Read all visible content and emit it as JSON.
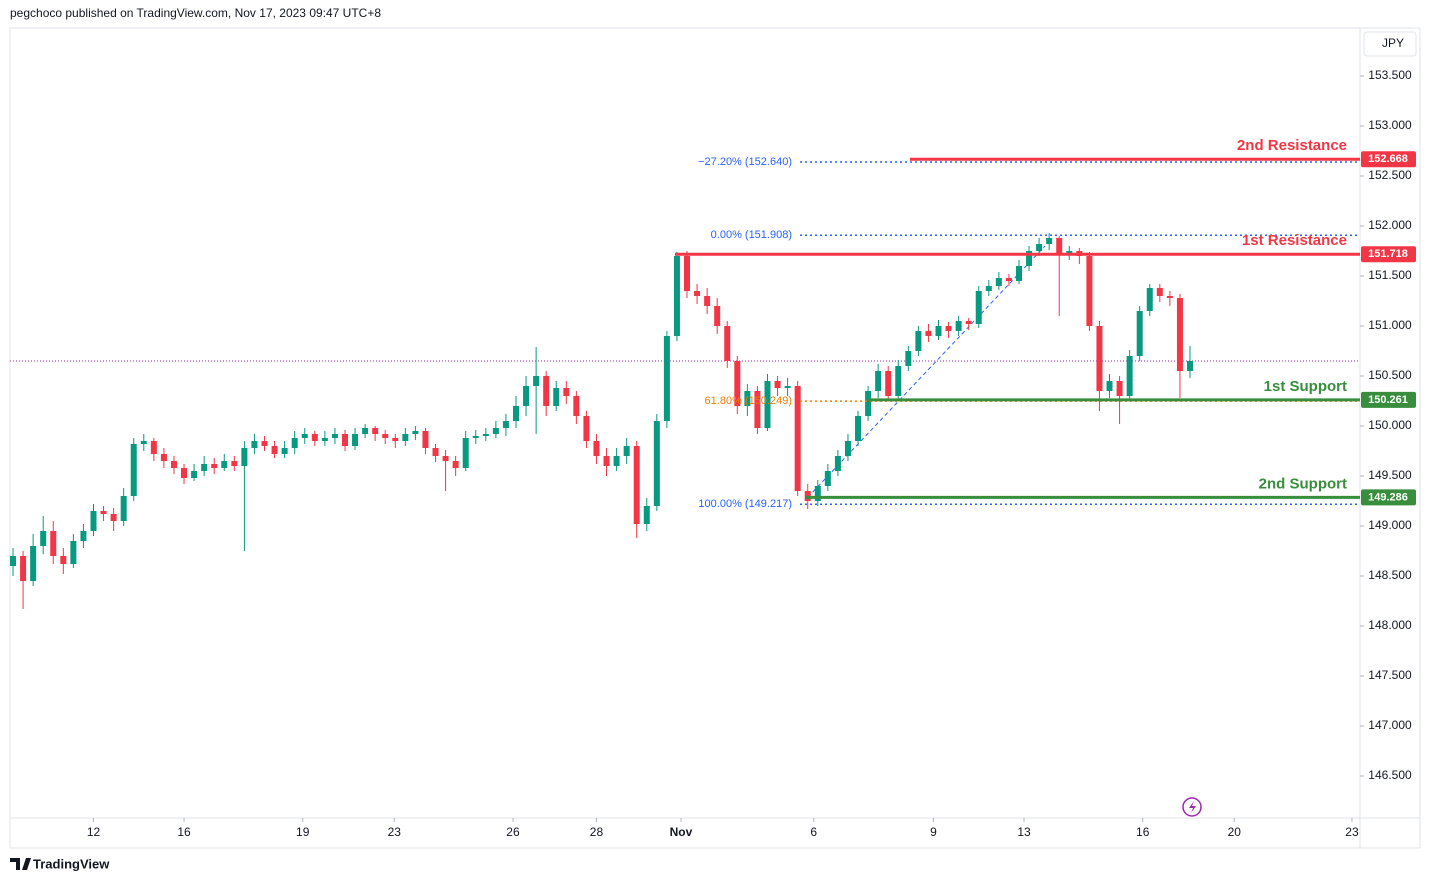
{
  "header": "pegchoco published on TradingView.com, Nov 17, 2023 09:47 UTC+8",
  "brand": "TradingView",
  "chart_data": {
    "type": "candlestick",
    "currency": "JPY",
    "up_color": "#089981",
    "down_color": "#f23645",
    "xlim": [
      -0.3,
      133.9
    ],
    "ylim": [
      146.08,
      153.98
    ],
    "xticks": [
      {
        "value": 8.0,
        "label": "12"
      },
      {
        "value": 17.0,
        "label": "16"
      },
      {
        "value": 28.8,
        "label": "19"
      },
      {
        "value": 37.9,
        "label": "23"
      },
      {
        "value": 49.7,
        "label": "26"
      },
      {
        "value": 58.0,
        "label": "28"
      },
      {
        "value": 66.4,
        "label": "Nov"
      },
      {
        "value": 79.6,
        "label": "6"
      },
      {
        "value": 91.5,
        "label": "9"
      },
      {
        "value": 100.5,
        "label": "13"
      },
      {
        "value": 112.3,
        "label": "16"
      },
      {
        "value": 121.4,
        "label": "20"
      },
      {
        "value": 133.1,
        "label": "23"
      }
    ],
    "yticks": [
      {
        "value": 146.5,
        "label": "146.500"
      },
      {
        "value": 147,
        "label": "147.000"
      },
      {
        "value": 147.5,
        "label": "147.500"
      },
      {
        "value": 148,
        "label": "148.000"
      },
      {
        "value": 148.5,
        "label": "148.500"
      },
      {
        "value": 149,
        "label": "149.000"
      },
      {
        "value": 149.5,
        "label": "149.500"
      },
      {
        "value": 150,
        "label": "150.000"
      },
      {
        "value": 150.5,
        "label": "150.500"
      },
      {
        "value": 151,
        "label": "151.000"
      },
      {
        "value": 151.5,
        "label": "151.500"
      },
      {
        "value": 152,
        "label": "152.000"
      },
      {
        "value": 152.5,
        "label": "152.500"
      },
      {
        "value": 153,
        "label": "153.000"
      },
      {
        "value": 153.5,
        "label": "153.500"
      }
    ],
    "levels": [
      {
        "name": "2nd Resistance",
        "value": 152.668,
        "color": "#f23645"
      },
      {
        "name": "1st Resistance",
        "value": 151.718,
        "color": "#f23645"
      },
      {
        "name": "1st Support",
        "value": 150.261,
        "color": "#388e3c"
      },
      {
        "name": "2nd Support",
        "value": 149.286,
        "color": "#388e3c"
      }
    ],
    "fib_levels": [
      {
        "label": "−27.20% (152.640)",
        "value": 152.64,
        "color": "#2962ff"
      },
      {
        "label": "0.00% (151.908)",
        "value": 151.908,
        "color": "#2962ff"
      },
      {
        "label": "61.80% (150.249)",
        "value": 150.249,
        "color": "#f57c00"
      },
      {
        "label": "100.00% (149.217)",
        "value": 149.217,
        "color": "#2962ff"
      }
    ],
    "ohlc": [
      [
        148.6,
        148.78,
        148.5,
        148.7
      ],
      [
        148.7,
        148.75,
        148.17,
        148.45
      ],
      [
        148.45,
        148.92,
        148.4,
        148.8
      ],
      [
        148.8,
        149.1,
        148.72,
        148.95
      ],
      [
        148.95,
        149.05,
        148.62,
        148.7
      ],
      [
        148.7,
        148.78,
        148.52,
        148.62
      ],
      [
        148.62,
        148.92,
        148.58,
        148.85
      ],
      [
        148.85,
        149.02,
        148.78,
        148.95
      ],
      [
        148.95,
        149.22,
        148.9,
        149.15
      ],
      [
        149.15,
        149.2,
        149.05,
        149.12
      ],
      [
        149.12,
        149.18,
        148.95,
        149.05
      ],
      [
        149.05,
        149.38,
        149.0,
        149.3
      ],
      [
        149.3,
        149.88,
        149.25,
        149.82
      ],
      [
        149.82,
        149.92,
        149.75,
        149.85
      ],
      [
        149.85,
        149.88,
        149.65,
        149.72
      ],
      [
        149.72,
        149.78,
        149.58,
        149.65
      ],
      [
        149.65,
        149.7,
        149.52,
        149.58
      ],
      [
        149.58,
        149.62,
        149.42,
        149.48
      ],
      [
        149.48,
        149.62,
        149.45,
        149.55
      ],
      [
        149.55,
        149.7,
        149.5,
        149.62
      ],
      [
        149.62,
        149.68,
        149.52,
        149.58
      ],
      [
        149.58,
        149.72,
        149.55,
        149.65
      ],
      [
        149.65,
        149.7,
        149.55,
        149.6
      ],
      [
        149.6,
        149.85,
        148.75,
        149.78
      ],
      [
        149.78,
        149.92,
        149.72,
        149.85
      ],
      [
        149.85,
        149.9,
        149.75,
        149.8
      ],
      [
        149.8,
        149.85,
        149.68,
        149.72
      ],
      [
        149.72,
        149.85,
        149.68,
        149.78
      ],
      [
        149.78,
        149.95,
        149.72,
        149.88
      ],
      [
        149.88,
        149.98,
        149.82,
        149.92
      ],
      [
        149.92,
        149.95,
        149.8,
        149.85
      ],
      [
        149.85,
        149.95,
        149.8,
        149.88
      ],
      [
        149.88,
        149.98,
        149.82,
        149.92
      ],
      [
        149.92,
        149.96,
        149.75,
        149.8
      ],
      [
        149.8,
        149.98,
        149.76,
        149.92
      ],
      [
        149.92,
        150.02,
        149.88,
        149.98
      ],
      [
        149.98,
        150.0,
        149.85,
        149.92
      ],
      [
        149.92,
        149.96,
        149.82,
        149.88
      ],
      [
        149.88,
        149.92,
        149.78,
        149.85
      ],
      [
        149.85,
        149.98,
        149.8,
        149.92
      ],
      [
        149.92,
        150.0,
        149.86,
        149.95
      ],
      [
        149.95,
        149.98,
        149.72,
        149.78
      ],
      [
        149.78,
        149.82,
        149.64,
        149.7
      ],
      [
        149.7,
        149.76,
        149.35,
        149.65
      ],
      [
        149.65,
        149.7,
        149.5,
        149.58
      ],
      [
        149.58,
        149.95,
        149.55,
        149.88
      ],
      [
        149.88,
        149.96,
        149.82,
        149.9
      ],
      [
        149.9,
        149.98,
        149.85,
        149.92
      ],
      [
        149.92,
        150.05,
        149.88,
        149.98
      ],
      [
        149.98,
        150.12,
        149.9,
        150.05
      ],
      [
        150.05,
        150.3,
        149.98,
        150.2
      ],
      [
        150.2,
        150.5,
        150.1,
        150.4
      ],
      [
        150.4,
        150.79,
        149.92,
        150.5
      ],
      [
        150.5,
        150.55,
        150.1,
        150.2
      ],
      [
        150.2,
        150.45,
        150.15,
        150.38
      ],
      [
        150.38,
        150.45,
        150.22,
        150.3
      ],
      [
        150.3,
        150.35,
        150.02,
        150.1
      ],
      [
        150.1,
        150.15,
        149.78,
        149.85
      ],
      [
        149.85,
        149.92,
        149.62,
        149.7
      ],
      [
        149.7,
        149.78,
        149.5,
        149.6
      ],
      [
        149.6,
        149.78,
        149.55,
        149.7
      ],
      [
        149.7,
        149.88,
        149.62,
        149.8
      ],
      [
        149.8,
        149.85,
        148.88,
        149.02
      ],
      [
        149.02,
        149.28,
        148.95,
        149.2
      ],
      [
        149.2,
        150.12,
        149.15,
        150.05
      ],
      [
        150.05,
        150.95,
        149.98,
        150.9
      ],
      [
        150.9,
        151.74,
        150.85,
        151.7
      ],
      [
        151.7,
        151.75,
        151.28,
        151.35
      ],
      [
        151.35,
        151.42,
        151.22,
        151.3
      ],
      [
        151.3,
        151.38,
        151.12,
        151.2
      ],
      [
        151.2,
        151.28,
        150.92,
        151.0
      ],
      [
        151.0,
        151.05,
        150.58,
        150.65
      ],
      [
        150.65,
        150.7,
        150.12,
        150.2
      ],
      [
        150.2,
        150.42,
        150.1,
        150.35
      ],
      [
        150.35,
        150.4,
        149.92,
        149.98
      ],
      [
        149.98,
        150.52,
        149.95,
        150.45
      ],
      [
        150.45,
        150.5,
        150.3,
        150.38
      ],
      [
        150.38,
        150.48,
        150.3,
        150.4
      ],
      [
        150.4,
        150.45,
        149.3,
        149.35
      ],
      [
        149.35,
        149.42,
        149.17,
        149.25
      ],
      [
        149.25,
        149.46,
        149.2,
        149.4
      ],
      [
        149.4,
        149.62,
        149.35,
        149.55
      ],
      [
        149.55,
        149.76,
        149.5,
        149.7
      ],
      [
        149.7,
        149.92,
        149.65,
        149.85
      ],
      [
        149.85,
        150.15,
        149.8,
        150.1
      ],
      [
        150.1,
        150.4,
        150.05,
        150.35
      ],
      [
        150.35,
        150.62,
        150.28,
        150.55
      ],
      [
        150.55,
        150.6,
        150.25,
        150.3
      ],
      [
        150.3,
        150.66,
        150.26,
        150.6
      ],
      [
        150.6,
        150.8,
        150.55,
        150.75
      ],
      [
        150.75,
        151.0,
        150.7,
        150.95
      ],
      [
        150.95,
        151.02,
        150.84,
        150.9
      ],
      [
        150.9,
        151.06,
        150.86,
        151.0
      ],
      [
        151.0,
        151.04,
        150.88,
        150.95
      ],
      [
        150.95,
        151.1,
        150.9,
        151.05
      ],
      [
        151.05,
        151.08,
        150.96,
        151.02
      ],
      [
        151.02,
        151.4,
        150.98,
        151.35
      ],
      [
        151.35,
        151.46,
        151.3,
        151.4
      ],
      [
        151.4,
        151.54,
        151.36,
        151.48
      ],
      [
        151.48,
        151.52,
        151.4,
        151.45
      ],
      [
        151.45,
        151.66,
        151.42,
        151.6
      ],
      [
        151.6,
        151.8,
        151.55,
        151.75
      ],
      [
        151.75,
        151.88,
        151.7,
        151.82
      ],
      [
        151.82,
        151.93,
        151.76,
        151.88
      ],
      [
        151.88,
        151.9,
        151.1,
        151.72
      ],
      [
        151.72,
        151.8,
        151.66,
        151.75
      ],
      [
        151.75,
        151.78,
        151.62,
        151.7
      ],
      [
        151.7,
        151.74,
        150.95,
        151.0
      ],
      [
        151.0,
        151.05,
        150.15,
        150.35
      ],
      [
        150.35,
        150.52,
        150.28,
        150.45
      ],
      [
        150.45,
        150.5,
        150.02,
        150.3
      ],
      [
        150.3,
        150.76,
        150.25,
        150.7
      ],
      [
        150.7,
        151.2,
        150.65,
        151.15
      ],
      [
        151.15,
        151.42,
        151.1,
        151.38
      ],
      [
        151.38,
        151.42,
        151.24,
        151.3
      ],
      [
        151.3,
        151.35,
        151.2,
        151.28
      ],
      [
        151.28,
        151.32,
        150.28,
        150.55
      ],
      [
        150.55,
        150.8,
        150.48,
        150.65
      ]
    ]
  }
}
